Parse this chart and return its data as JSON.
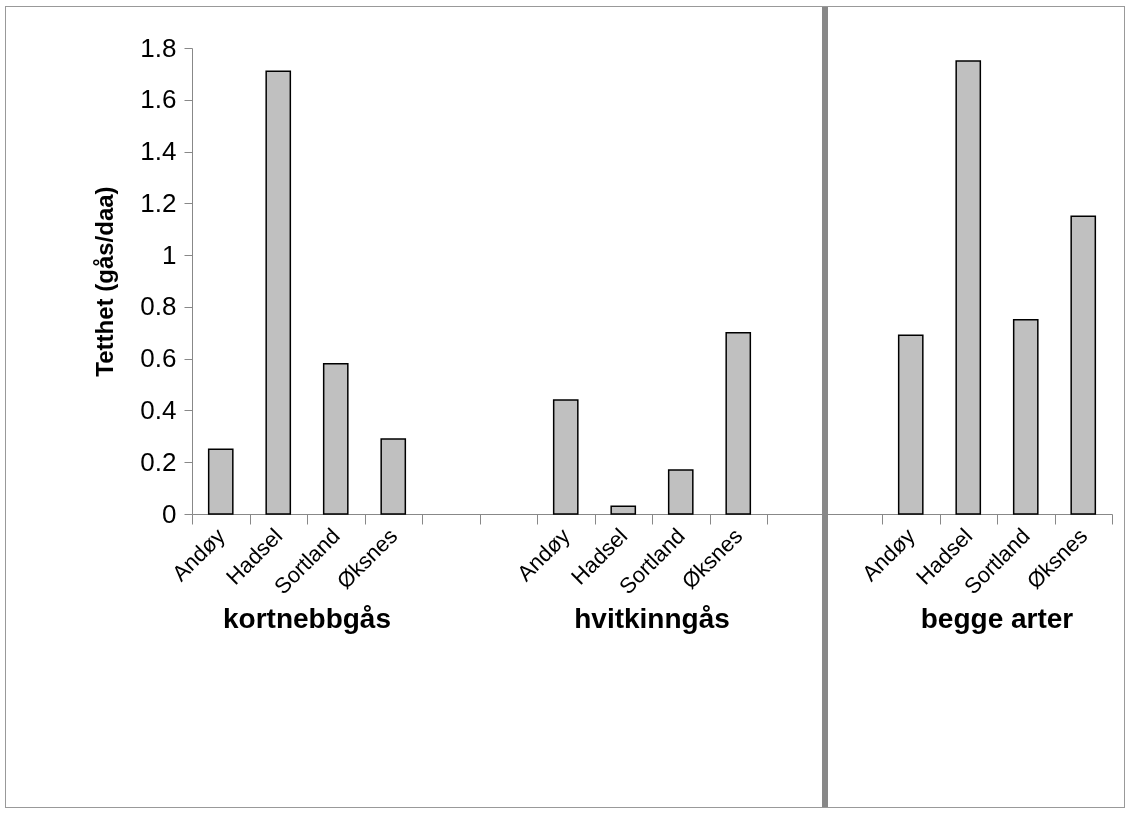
{
  "chart_data": {
    "type": "bar",
    "ylabel": "Tetthet (gås/daa)",
    "categories": [
      "Andøy",
      "Hadsel",
      "Sortland",
      "Øksnes",
      null,
      null,
      "Andøy",
      "Hadsel",
      "Sortland",
      "Øksnes",
      null,
      null,
      "Andøy",
      "Hadsel",
      "Sortland",
      "Øksnes"
    ],
    "values": [
      0.25,
      1.71,
      0.58,
      0.29,
      null,
      null,
      0.44,
      0.03,
      0.17,
      0.7,
      null,
      null,
      0.69,
      1.75,
      0.75,
      1.15
    ],
    "color": "#c0c0c0",
    "ylim": [
      0,
      1.8
    ],
    "yticks": [
      0,
      0.2,
      0.4,
      0.6,
      0.8,
      1,
      1.2,
      1.4,
      1.6,
      1.8
    ],
    "annotations": [
      "kortnebbgås",
      "hvitkinngås",
      "begge arter"
    ]
  }
}
